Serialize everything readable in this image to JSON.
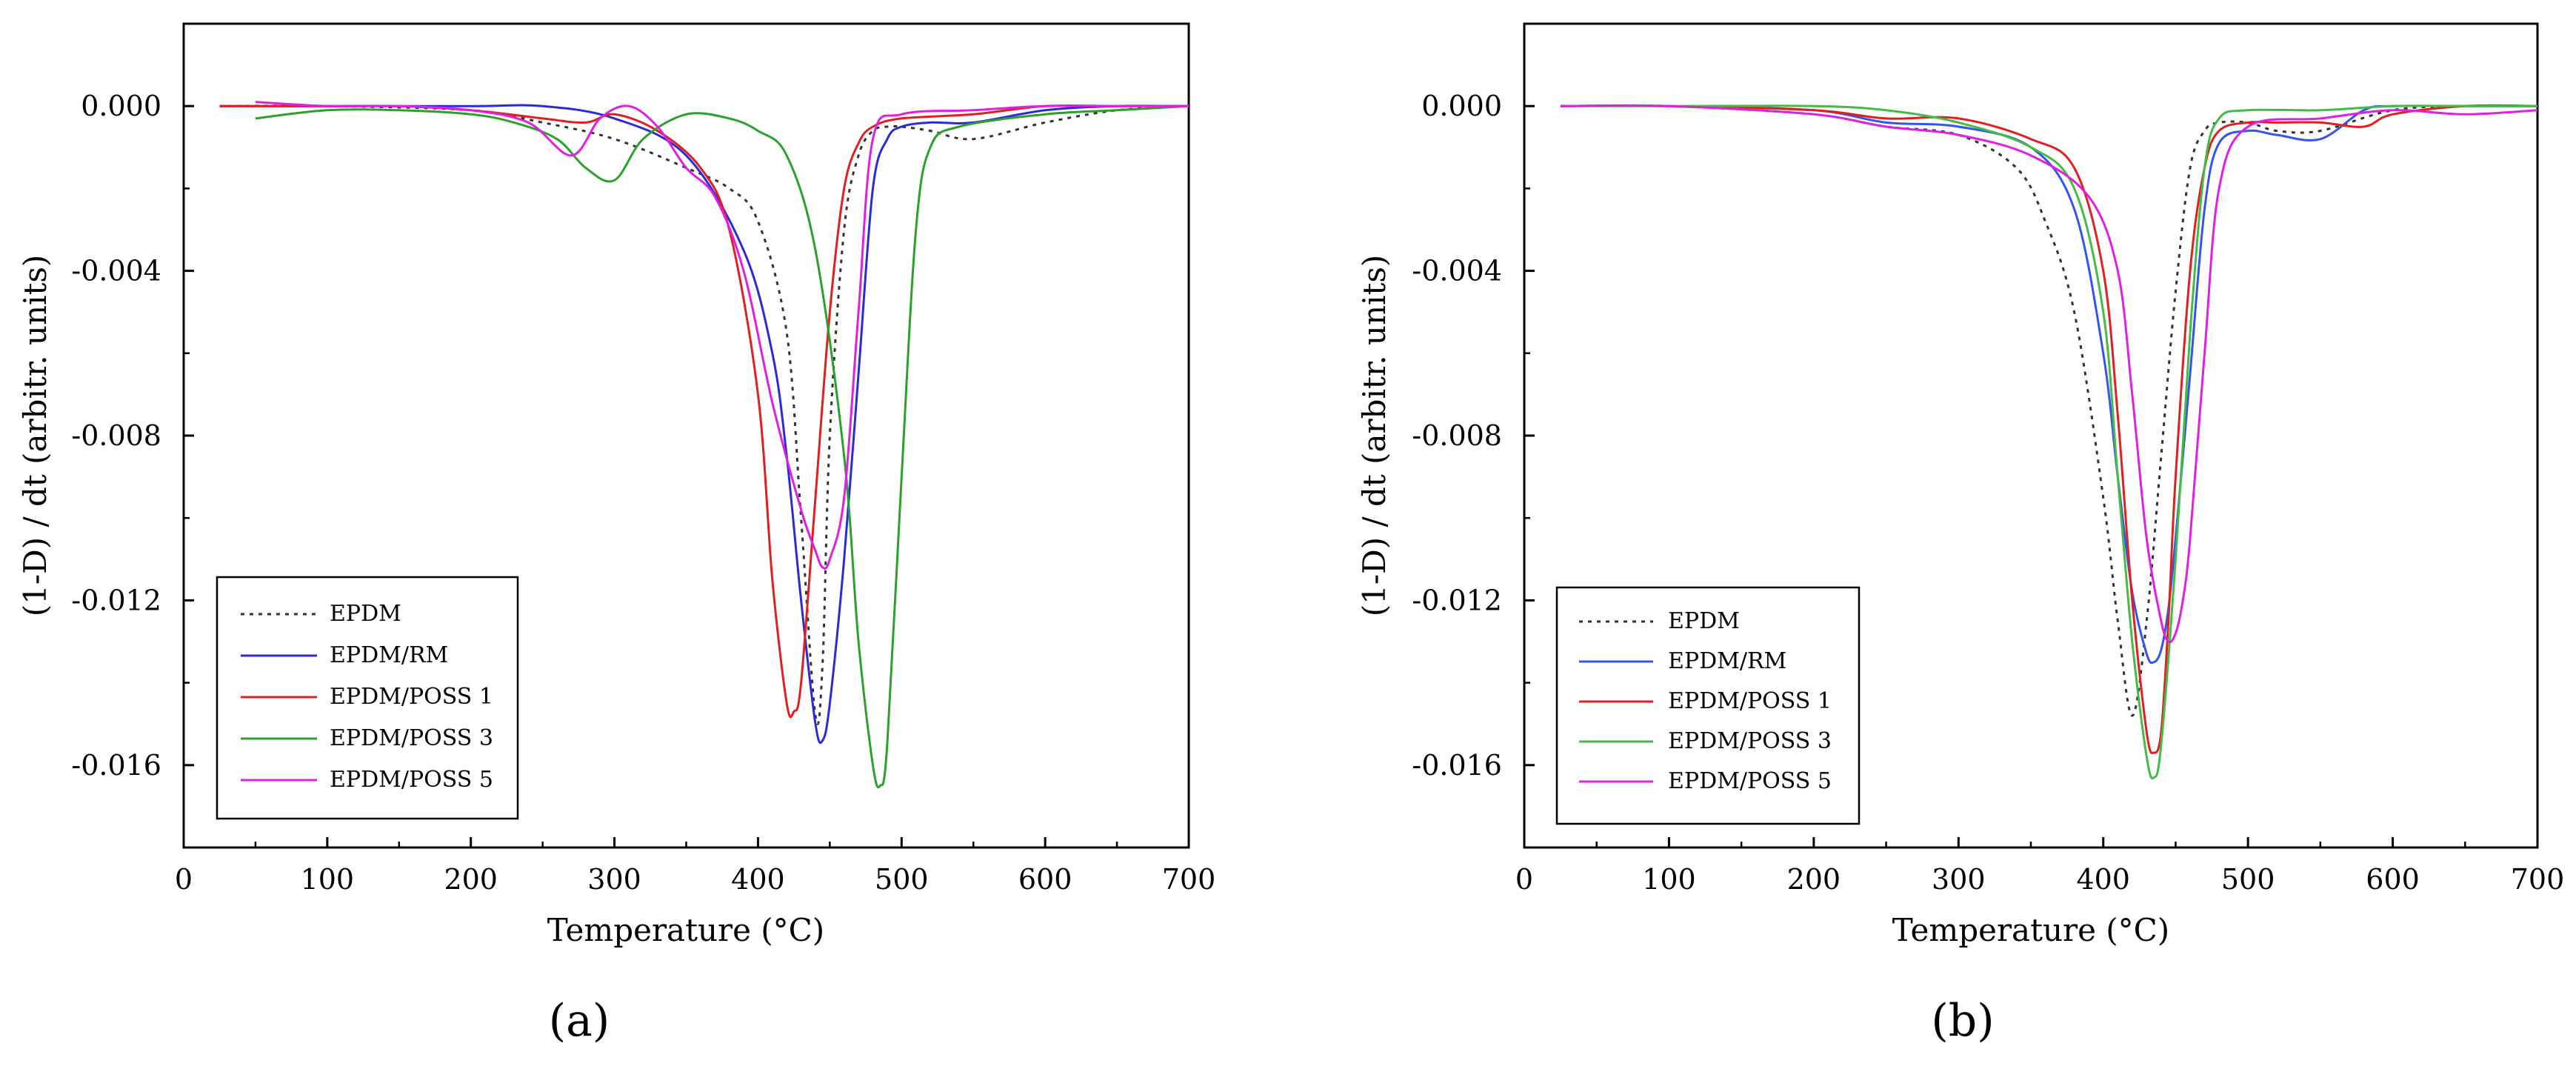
{
  "chart_data": [
    {
      "type": "line",
      "panel_label": "(a)",
      "xlabel": "Temperature (°C)",
      "ylabel": "(1-D) / dt (arbitr. units)",
      "xlim": [
        0,
        700
      ],
      "ylim": [
        -0.018,
        0.002
      ],
      "xticks": [
        0,
        100,
        200,
        300,
        400,
        500,
        600,
        700
      ],
      "xtick_labels": [
        "0",
        "100",
        "200",
        "300",
        "400",
        "500",
        "600",
        "700"
      ],
      "yticks": [
        0,
        -0.004,
        -0.008,
        -0.012,
        -0.016
      ],
      "ytick_labels": [
        "0.000",
        "-0.004",
        "-0.008",
        "-0.012",
        "-0.016"
      ],
      "legend_position": "bottom-left",
      "series": [
        {
          "name": "EPDM",
          "color": "#333333",
          "dash": "dotted",
          "x": [
            25,
            100,
            200,
            250,
            300,
            350,
            380,
            400,
            420,
            430,
            440,
            445,
            450,
            460,
            470,
            480,
            490,
            500,
            520,
            550,
            600,
            650,
            700
          ],
          "y": [
            0,
            0,
            -0.0001,
            -0.0004,
            -0.0008,
            -0.0015,
            -0.002,
            -0.0028,
            -0.0055,
            -0.01,
            -0.0148,
            -0.0135,
            -0.008,
            -0.003,
            -0.0012,
            -0.0006,
            -0.0005,
            -0.0005,
            -0.0006,
            -0.0008,
            -0.0004,
            -0.0001,
            0
          ]
        },
        {
          "name": "EPDM/RM",
          "color": "#2b2bd6",
          "dash": "solid",
          "x": [
            25,
            100,
            200,
            250,
            300,
            350,
            390,
            410,
            420,
            430,
            440,
            445,
            450,
            460,
            470,
            480,
            490,
            500,
            520,
            550,
            600,
            650,
            700
          ],
          "y": [
            0,
            0,
            0,
            0,
            -0.0003,
            -0.0012,
            -0.0035,
            -0.006,
            -0.0085,
            -0.012,
            -0.015,
            -0.0154,
            -0.0145,
            -0.011,
            -0.0065,
            -0.002,
            -0.0008,
            -0.0005,
            -0.0004,
            -0.0004,
            -0.0001,
            0,
            0
          ]
        },
        {
          "name": "EPDM/POSS 1",
          "color": "#e02020",
          "dash": "solid",
          "x": [
            25,
            100,
            150,
            200,
            250,
            280,
            300,
            330,
            360,
            380,
            400,
            410,
            420,
            425,
            430,
            440,
            450,
            460,
            470,
            480,
            500,
            550,
            600,
            650,
            700
          ],
          "y": [
            0,
            0,
            0,
            -0.0001,
            -0.0003,
            -0.0004,
            -0.0002,
            -0.0006,
            -0.0015,
            -0.003,
            -0.007,
            -0.0115,
            -0.0145,
            -0.0147,
            -0.014,
            -0.0095,
            -0.005,
            -0.002,
            -0.0009,
            -0.0005,
            -0.0003,
            -0.0002,
            0,
            0,
            0
          ]
        },
        {
          "name": "EPDM/POSS 3",
          "color": "#2ca02c",
          "dash": "solid",
          "x": [
            50,
            100,
            150,
            200,
            230,
            260,
            280,
            300,
            320,
            350,
            380,
            400,
            420,
            440,
            460,
            470,
            480,
            485,
            490,
            500,
            510,
            520,
            540,
            600,
            650,
            700
          ],
          "y": [
            -0.0003,
            -0.0001,
            -0.0001,
            -0.0002,
            -0.0004,
            -0.0008,
            -0.0015,
            -0.0018,
            -0.0008,
            -0.0002,
            -0.0003,
            -0.0006,
            -0.0012,
            -0.0035,
            -0.0085,
            -0.013,
            -0.016,
            -0.0165,
            -0.0155,
            -0.009,
            -0.003,
            -0.001,
            -0.0005,
            -0.0002,
            -0.0001,
            0
          ]
        },
        {
          "name": "EPDM/POSS 5",
          "color": "#e020e0",
          "dash": "solid",
          "x": [
            50,
            100,
            150,
            200,
            240,
            270,
            290,
            310,
            330,
            350,
            370,
            390,
            410,
            430,
            440,
            445,
            450,
            460,
            470,
            480,
            500,
            550,
            600,
            650,
            700
          ],
          "y": [
            0.0001,
            0,
            0,
            -0.0001,
            -0.0004,
            -0.0012,
            -0.0003,
            0,
            -0.0005,
            -0.0015,
            -0.0022,
            -0.004,
            -0.0072,
            -0.0098,
            -0.0108,
            -0.0112,
            -0.011,
            -0.0095,
            -0.005,
            -0.0008,
            -0.0002,
            -0.0001,
            0,
            0,
            0
          ]
        }
      ]
    },
    {
      "type": "line",
      "panel_label": "(b)",
      "xlabel": "Temperature (°C)",
      "ylabel": "(1-D) / dt (arbitr. units)",
      "xlim": [
        0,
        700
      ],
      "ylim": [
        -0.018,
        0.002
      ],
      "xticks": [
        0,
        100,
        200,
        300,
        400,
        500,
        600,
        700
      ],
      "xtick_labels": [
        "0",
        "100",
        "200",
        "300",
        "400",
        "500",
        "600",
        "700"
      ],
      "yticks": [
        0,
        -0.004,
        -0.008,
        -0.012,
        -0.016
      ],
      "ytick_labels": [
        "0.000",
        "-0.004",
        "-0.008",
        "-0.012",
        "-0.016"
      ],
      "legend_position": "bottom-left",
      "series": [
        {
          "name": "EPDM",
          "color": "#333333",
          "dash": "dotted",
          "x": [
            25,
            100,
            200,
            250,
            300,
            340,
            360,
            380,
            400,
            410,
            420,
            430,
            440,
            450,
            460,
            470,
            480,
            500,
            520,
            550,
            600,
            650,
            700
          ],
          "y": [
            0,
            0,
            -0.0002,
            -0.0005,
            -0.0007,
            -0.0015,
            -0.0028,
            -0.005,
            -0.0095,
            -0.0125,
            -0.0148,
            -0.0125,
            -0.0085,
            -0.0045,
            -0.0015,
            -0.0006,
            -0.0004,
            -0.0004,
            -0.0006,
            -0.0006,
            -0.0001,
            0,
            0
          ]
        },
        {
          "name": "EPDM/RM",
          "color": "#3355ee",
          "dash": "solid",
          "x": [
            25,
            100,
            200,
            250,
            300,
            350,
            380,
            400,
            410,
            420,
            430,
            435,
            440,
            445,
            450,
            460,
            470,
            480,
            500,
            520,
            550,
            580,
            600,
            650,
            700
          ],
          "y": [
            0,
            0,
            -0.0001,
            -0.0004,
            -0.0005,
            -0.001,
            -0.0025,
            -0.006,
            -0.009,
            -0.0118,
            -0.0133,
            -0.0135,
            -0.0132,
            -0.0122,
            -0.0105,
            -0.0065,
            -0.0025,
            -0.0009,
            -0.0006,
            -0.0007,
            -0.0008,
            -0.0001,
            0,
            0,
            0
          ]
        },
        {
          "name": "EPDM/POSS 1",
          "color": "#e02020",
          "dash": "solid",
          "x": [
            25,
            100,
            200,
            250,
            300,
            350,
            380,
            400,
            410,
            420,
            430,
            435,
            440,
            445,
            450,
            460,
            470,
            480,
            500,
            520,
            550,
            580,
            600,
            650,
            700
          ],
          "y": [
            0,
            0,
            -0.0001,
            -0.0003,
            -0.0003,
            -0.0008,
            -0.0015,
            -0.004,
            -0.0075,
            -0.012,
            -0.0152,
            -0.0157,
            -0.0152,
            -0.0125,
            -0.009,
            -0.004,
            -0.0015,
            -0.0006,
            -0.0004,
            -0.0004,
            -0.0004,
            -0.0005,
            -0.0002,
            0,
            0
          ]
        },
        {
          "name": "EPDM/POSS 3",
          "color": "#44bb44",
          "dash": "solid",
          "x": [
            25,
            100,
            200,
            250,
            300,
            350,
            380,
            400,
            410,
            420,
            430,
            435,
            440,
            450,
            460,
            470,
            480,
            500,
            550,
            600,
            650,
            700
          ],
          "y": [
            0,
            0,
            0,
            -0.0001,
            -0.0004,
            -0.001,
            -0.002,
            -0.005,
            -0.009,
            -0.013,
            -0.0158,
            -0.0163,
            -0.0155,
            -0.011,
            -0.0055,
            -0.0015,
            -0.0003,
            -0.0001,
            -0.0001,
            0,
            0,
            0
          ]
        },
        {
          "name": "EPDM/POSS 5",
          "color": "#e020e0",
          "dash": "solid",
          "x": [
            25,
            100,
            200,
            250,
            300,
            350,
            390,
            410,
            420,
            430,
            440,
            445,
            450,
            455,
            460,
            470,
            480,
            500,
            550,
            600,
            650,
            700
          ],
          "y": [
            0,
            0,
            -0.0002,
            -0.0005,
            -0.0007,
            -0.0012,
            -0.0022,
            -0.004,
            -0.007,
            -0.0105,
            -0.0125,
            -0.013,
            -0.0128,
            -0.012,
            -0.0105,
            -0.006,
            -0.002,
            -0.0005,
            -0.0003,
            -0.0001,
            -0.0002,
            -0.0001
          ]
        }
      ]
    }
  ]
}
